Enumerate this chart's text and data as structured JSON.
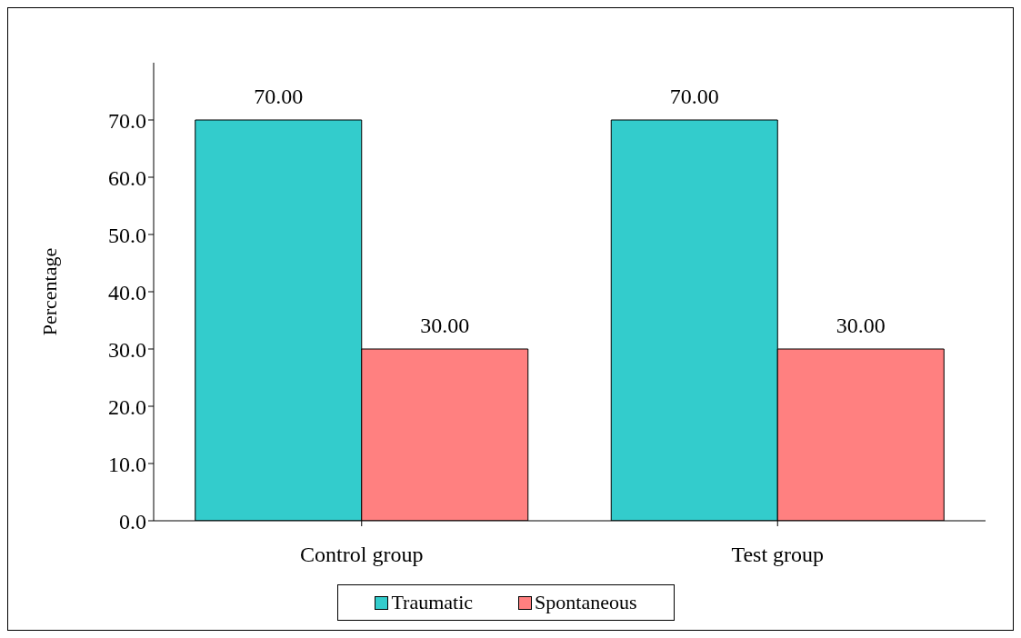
{
  "chart_data": {
    "type": "bar",
    "ylabel": "Percentage",
    "categories": [
      "Control group",
      "Test group"
    ],
    "series": [
      {
        "name": "Traumatic",
        "color": "#33cccc",
        "values": [
          70,
          70
        ],
        "value_labels": [
          "70.00",
          "70.00"
        ]
      },
      {
        "name": "Spontaneous",
        "color": "#ff8080",
        "values": [
          30,
          30
        ],
        "value_labels": [
          "30.00",
          "30.00"
        ]
      }
    ],
    "ylim": [
      0,
      80
    ],
    "yticks": [
      {
        "value": 0,
        "label": "0.0"
      },
      {
        "value": 10,
        "label": "10.0"
      },
      {
        "value": 20,
        "label": "20.0"
      },
      {
        "value": 30,
        "label": "30.0"
      },
      {
        "value": 40,
        "label": "40.0"
      },
      {
        "value": 50,
        "label": "50.0"
      },
      {
        "value": 60,
        "label": "60.0"
      },
      {
        "value": 70,
        "label": "70.0"
      }
    ],
    "grid": false,
    "legend": "bottom"
  }
}
